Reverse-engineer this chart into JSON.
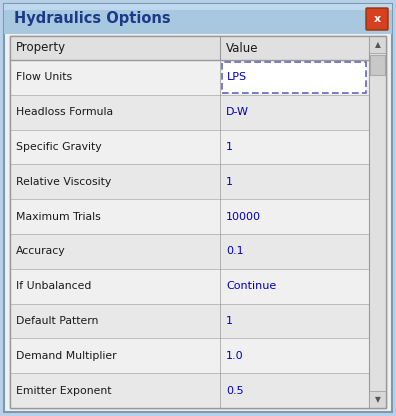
{
  "title": "Hydraulics Options",
  "title_color": "#1a3a8a",
  "title_bg_top": "#b8d4e8",
  "title_bg_bot": "#8ab4d0",
  "close_btn_color": "#cc4400",
  "header_bg": "#e0e0e0",
  "row_bg_odd": "#f0f0f0",
  "row_bg_even": "#e8e8e8",
  "property_col_header": "Property",
  "value_col_header": "Value",
  "property_text_color": "#1a1a1a",
  "value_text_color": "#0000bb",
  "rows": [
    {
      "property": "Flow Units",
      "value": "LPS",
      "has_dropdown": true
    },
    {
      "property": "Headloss Formula",
      "value": "D-W",
      "has_dropdown": false
    },
    {
      "property": "Specific Gravity",
      "value": "1",
      "has_dropdown": false
    },
    {
      "property": "Relative Viscosity",
      "value": "1",
      "has_dropdown": false
    },
    {
      "property": "Maximum Trials",
      "value": "10000",
      "has_dropdown": false
    },
    {
      "property": "Accuracy",
      "value": "0.1",
      "has_dropdown": false
    },
    {
      "property": "If Unbalanced",
      "value": "Continue",
      "has_dropdown": false
    },
    {
      "property": "Default Pattern",
      "value": "1",
      "has_dropdown": false
    },
    {
      "property": "Demand Multiplier",
      "value": "1.0",
      "has_dropdown": false
    },
    {
      "property": "Emitter Exponent",
      "value": "0.5",
      "has_dropdown": false
    }
  ],
  "outer_bg": "#b8d0e8",
  "dialog_bg": "#f0f0f0",
  "border_color": "#999999",
  "scrollbar_bg": "#e0e0e0",
  "scrollbar_thumb": "#c8c8c8",
  "fig_width": 3.96,
  "fig_height": 4.16,
  "dpi": 100
}
